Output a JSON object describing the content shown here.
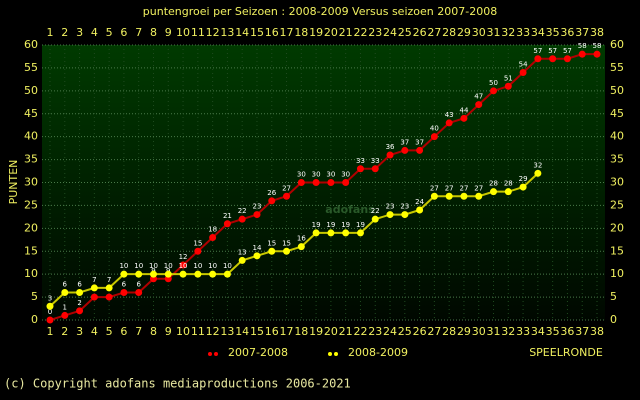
{
  "chart_data": {
    "type": "line",
    "title": "puntengroei per Seizoen : 2008-2009 Versus seizoen 2007-2008",
    "ylabel": "PUNTEN",
    "xlabel": "SPEELRONDE",
    "watermark": "adofans",
    "footer": "(c) Copyright adofans mediaproductions 2006-2021",
    "x": [
      1,
      2,
      3,
      4,
      5,
      6,
      7,
      8,
      9,
      10,
      11,
      12,
      13,
      14,
      15,
      16,
      17,
      18,
      19,
      20,
      21,
      22,
      23,
      24,
      25,
      26,
      27,
      28,
      29,
      30,
      31,
      32,
      33,
      34,
      35,
      36,
      37,
      38
    ],
    "xlim": [
      1,
      38
    ],
    "ylim": [
      0,
      60
    ],
    "yticks": [
      0,
      5,
      10,
      15,
      20,
      25,
      30,
      35,
      40,
      45,
      50,
      55,
      60
    ],
    "y2lim": [
      0,
      60
    ],
    "y2ticks": [
      0,
      5,
      10,
      15,
      20,
      25,
      30,
      35,
      40,
      45,
      50,
      55,
      60
    ],
    "grid": true,
    "series": [
      {
        "name": "2007-2008",
        "color": "#ff0000",
        "values": [
          0,
          1,
          2,
          5,
          5,
          6,
          6,
          9,
          9,
          12,
          15,
          18,
          21,
          22,
          23,
          26,
          27,
          30,
          30,
          30,
          30,
          33,
          33,
          36,
          37,
          37,
          40,
          43,
          44,
          47,
          50,
          51,
          54,
          57,
          57,
          57,
          58,
          58
        ]
      },
      {
        "name": "2008-2009",
        "color": "#ffff00",
        "values": [
          3,
          6,
          6,
          7,
          7,
          10,
          10,
          10,
          10,
          10,
          10,
          10,
          10,
          13,
          14,
          15,
          15,
          16,
          19,
          19,
          19,
          19,
          22,
          23,
          23,
          24,
          27,
          27,
          27,
          27,
          28,
          28,
          29,
          32,
          null,
          null,
          null,
          null
        ]
      }
    ]
  }
}
